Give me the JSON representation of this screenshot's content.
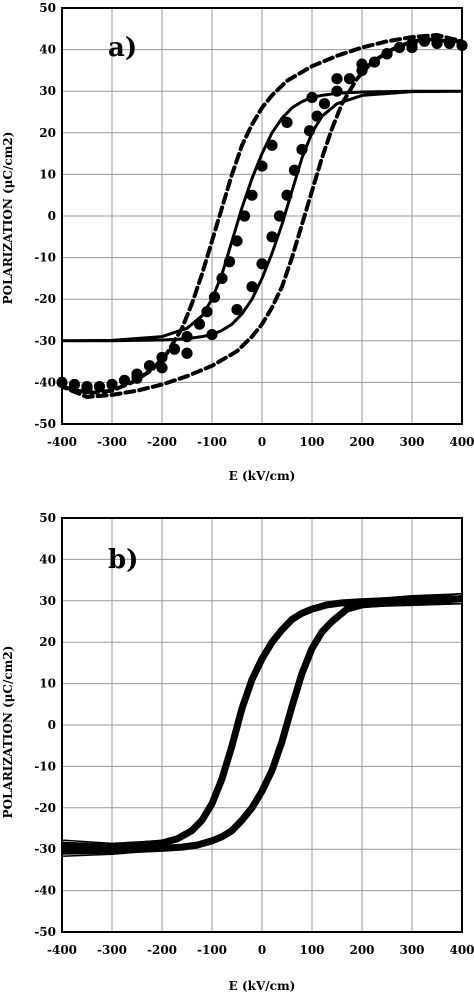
{
  "chart_data": [
    {
      "type": "line",
      "panel_label": "a)",
      "xlabel": "E (kV/cm)",
      "ylabel": "POLARIZATION (μC/cm2)",
      "xlim": [
        -400,
        400
      ],
      "ylim": [
        -50,
        50
      ],
      "x_ticks": [
        -400,
        -300,
        -200,
        -100,
        0,
        100,
        200,
        300,
        400
      ],
      "y_ticks": [
        -50,
        -40,
        -30,
        -20,
        -10,
        0,
        10,
        20,
        30,
        40,
        50
      ],
      "grid": true,
      "series": [
        {
          "style": "solid",
          "x": [
            -400,
            -300,
            -200,
            -150,
            -120,
            -100,
            -80,
            -60,
            -40,
            -20,
            0,
            20,
            40,
            60,
            80,
            100,
            120,
            150,
            200,
            300,
            400,
            300,
            200,
            150,
            120,
            100,
            80,
            60,
            40,
            20,
            0,
            -20,
            -40,
            -60,
            -80,
            -100,
            -120,
            -150,
            -200,
            -300,
            -400
          ],
          "y": [
            -30,
            -29.9,
            -29,
            -27,
            -24,
            -20,
            -14,
            -6,
            2,
            9,
            15,
            20,
            23.5,
            26,
            27.5,
            28.5,
            29,
            29.5,
            29.8,
            30,
            30,
            29.9,
            29,
            27,
            24,
            20,
            14,
            6,
            -2,
            -9,
            -15,
            -20,
            -23.5,
            -26,
            -27.5,
            -28.5,
            -29,
            -29.5,
            -29.8,
            -30,
            -30
          ]
        },
        {
          "style": "dashed",
          "x": [
            -400,
            -370,
            -340,
            -300,
            -260,
            -220,
            -190,
            -160,
            -140,
            -120,
            -100,
            -80,
            -60,
            -40,
            -20,
            0,
            20,
            50,
            100,
            150,
            200,
            250,
            300,
            350,
            400,
            370,
            340,
            300,
            260,
            220,
            190,
            160,
            140,
            120,
            100,
            80,
            60,
            40,
            20,
            0,
            -20,
            -50,
            -100,
            -150,
            -200,
            -250,
            -300,
            -350,
            -400
          ],
          "y": [
            -41,
            -42,
            -42.5,
            -42,
            -40,
            -37,
            -33,
            -27,
            -21,
            -14,
            -6,
            2,
            10,
            17,
            22,
            26,
            29,
            32.5,
            36,
            38.5,
            40.5,
            42,
            43,
            43.5,
            42,
            42,
            42.5,
            42,
            40,
            37,
            33,
            27,
            21,
            14,
            6,
            -2,
            -10,
            -17,
            -22,
            -26,
            -29,
            -32.5,
            -36,
            -38.5,
            -40.5,
            -42,
            -43,
            -43.5,
            -41
          ]
        },
        {
          "style": "dots",
          "x": [
            -400,
            -375,
            -350,
            -325,
            -300,
            -275,
            -250,
            -225,
            -200,
            -175,
            -150,
            -125,
            -110,
            -95,
            -80,
            -65,
            -50,
            -35,
            -20,
            0,
            20,
            50,
            100,
            150,
            200,
            250,
            300,
            350,
            400,
            375,
            350,
            325,
            300,
            275,
            250,
            225,
            200,
            175,
            150,
            125,
            110,
            95,
            80,
            65,
            50,
            35,
            20,
            0,
            -20,
            -50,
            -100,
            -150,
            -200,
            -250,
            -300,
            -350
          ],
          "y": [
            -40,
            -40.5,
            -41,
            -41,
            -40.5,
            -39.5,
            -38,
            -36,
            -34,
            -32,
            -29,
            -26,
            -23,
            -19.5,
            -15,
            -11,
            -6,
            0,
            5,
            12,
            17,
            22.5,
            28.5,
            33,
            36.5,
            39,
            40.5,
            41.5,
            41,
            41.5,
            42,
            42,
            41.5,
            40.5,
            39,
            37,
            35,
            33,
            30,
            27,
            24,
            20.5,
            16,
            11,
            5,
            0,
            -5,
            -11.5,
            -17,
            -22.5,
            -28.5,
            -33,
            -36.5,
            -39,
            -40.5,
            -41.5
          ]
        }
      ]
    },
    {
      "type": "line",
      "panel_label": "b)",
      "xlabel": "E (kV/cm)",
      "ylabel": "POLARIZATION (μC/cm2)",
      "xlim": [
        -400,
        400
      ],
      "ylim": [
        -50,
        50
      ],
      "x_ticks": [
        -400,
        -300,
        -200,
        -100,
        0,
        100,
        200,
        300,
        400
      ],
      "y_ticks": [
        -50,
        -40,
        -30,
        -20,
        -10,
        0,
        10,
        20,
        30,
        40,
        50
      ],
      "grid": true,
      "series": [
        {
          "style": "solid",
          "x": [
            -400,
            -300,
            -250,
            -200,
            -170,
            -140,
            -120,
            -100,
            -80,
            -60,
            -40,
            -20,
            0,
            20,
            40,
            60,
            80,
            100,
            130,
            160,
            200,
            250,
            300,
            400,
            300,
            250,
            200,
            170,
            140,
            120,
            100,
            80,
            60,
            40,
            20,
            0,
            -20,
            -40,
            -60,
            -80,
            -100,
            -130,
            -160,
            -200,
            -250,
            -300,
            -400
          ],
          "y": [
            -29,
            -29.5,
            -29,
            -28.5,
            -27.5,
            -25.5,
            -23,
            -19,
            -13,
            -5,
            4,
            11,
            16,
            20,
            23,
            25.5,
            27,
            28,
            29,
            29.5,
            29.8,
            30,
            30.3,
            30.5,
            29.8,
            29.5,
            29,
            28,
            25,
            22.5,
            18.5,
            12.5,
            4.5,
            -4,
            -11,
            -16,
            -20,
            -23,
            -25.5,
            -27,
            -28,
            -29,
            -29.5,
            -29.8,
            -30,
            -30.3,
            -30.5
          ]
        }
      ]
    }
  ]
}
